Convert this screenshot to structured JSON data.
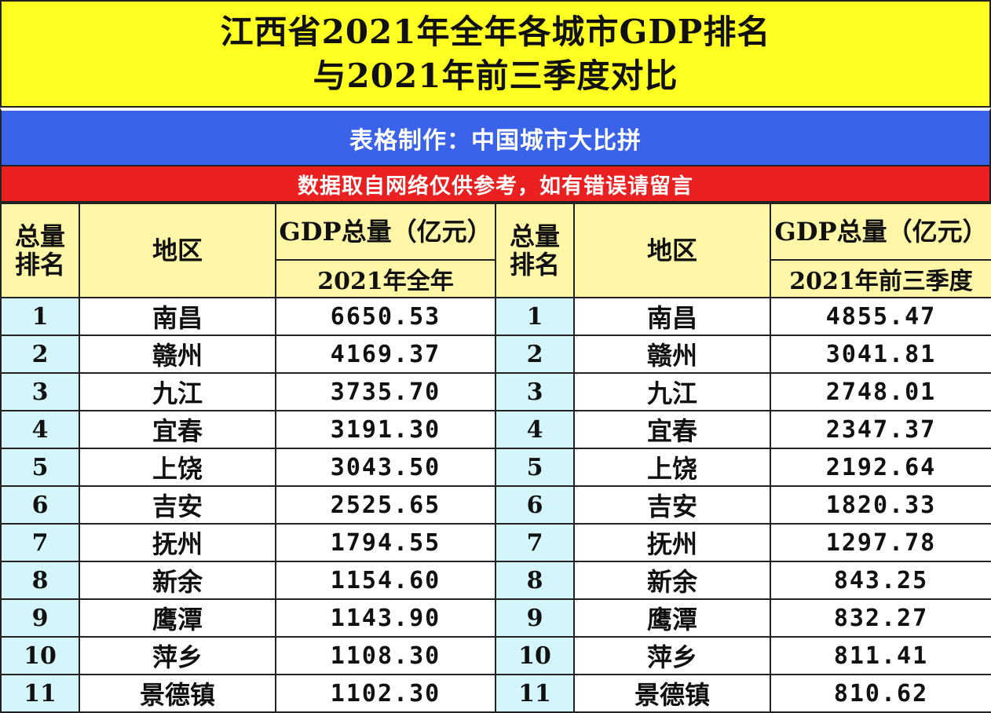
{
  "title": {
    "line1": "江西省2021年全年各城市GDP排名",
    "line2": "与2021年前三季度对比"
  },
  "credit": "表格制作：中国城市大比拼",
  "notice": "数据取自网络仅供参考，如有错误请留言",
  "headers": {
    "rank_line1": "总量",
    "rank_line2": "排名",
    "region": "地区",
    "gdp_total": "GDP总量（亿元）",
    "period_full": "2021年全年",
    "period_q3": "2021年前三季度"
  },
  "rows": [
    {
      "rank": "1",
      "city": "南昌",
      "full_year": "6650.53",
      "rank_q3": "1",
      "city_q3": "南昌",
      "q3": "4855.47"
    },
    {
      "rank": "2",
      "city": "赣州",
      "full_year": "4169.37",
      "rank_q3": "2",
      "city_q3": "赣州",
      "q3": "3041.81"
    },
    {
      "rank": "3",
      "city": "九江",
      "full_year": "3735.70",
      "rank_q3": "3",
      "city_q3": "九江",
      "q3": "2748.01"
    },
    {
      "rank": "4",
      "city": "宜春",
      "full_year": "3191.30",
      "rank_q3": "4",
      "city_q3": "宜春",
      "q3": "2347.37"
    },
    {
      "rank": "5",
      "city": "上饶",
      "full_year": "3043.50",
      "rank_q3": "5",
      "city_q3": "上饶",
      "q3": "2192.64"
    },
    {
      "rank": "6",
      "city": "吉安",
      "full_year": "2525.65",
      "rank_q3": "6",
      "city_q3": "吉安",
      "q3": "1820.33"
    },
    {
      "rank": "7",
      "city": "抚州",
      "full_year": "1794.55",
      "rank_q3": "7",
      "city_q3": "抚州",
      "q3": "1297.78"
    },
    {
      "rank": "8",
      "city": "新余",
      "full_year": "1154.60",
      "rank_q3": "8",
      "city_q3": "新余",
      "q3": "843.25"
    },
    {
      "rank": "9",
      "city": "鹰潭",
      "full_year": "1143.90",
      "rank_q3": "9",
      "city_q3": "鹰潭",
      "q3": "832.27"
    },
    {
      "rank": "10",
      "city": "萍乡",
      "full_year": "1108.30",
      "rank_q3": "10",
      "city_q3": "萍乡",
      "q3": "811.41"
    },
    {
      "rank": "11",
      "city": "景德镇",
      "full_year": "1102.30",
      "rank_q3": "11",
      "city_q3": "景德镇",
      "q3": "810.62"
    }
  ],
  "colors": {
    "title_band": "#ffff22",
    "credit_band": "#3a63ea",
    "notice_band": "#ea1f1f",
    "header_fill": "#fff7a8",
    "rank_fill": "#d4f6fb"
  }
}
